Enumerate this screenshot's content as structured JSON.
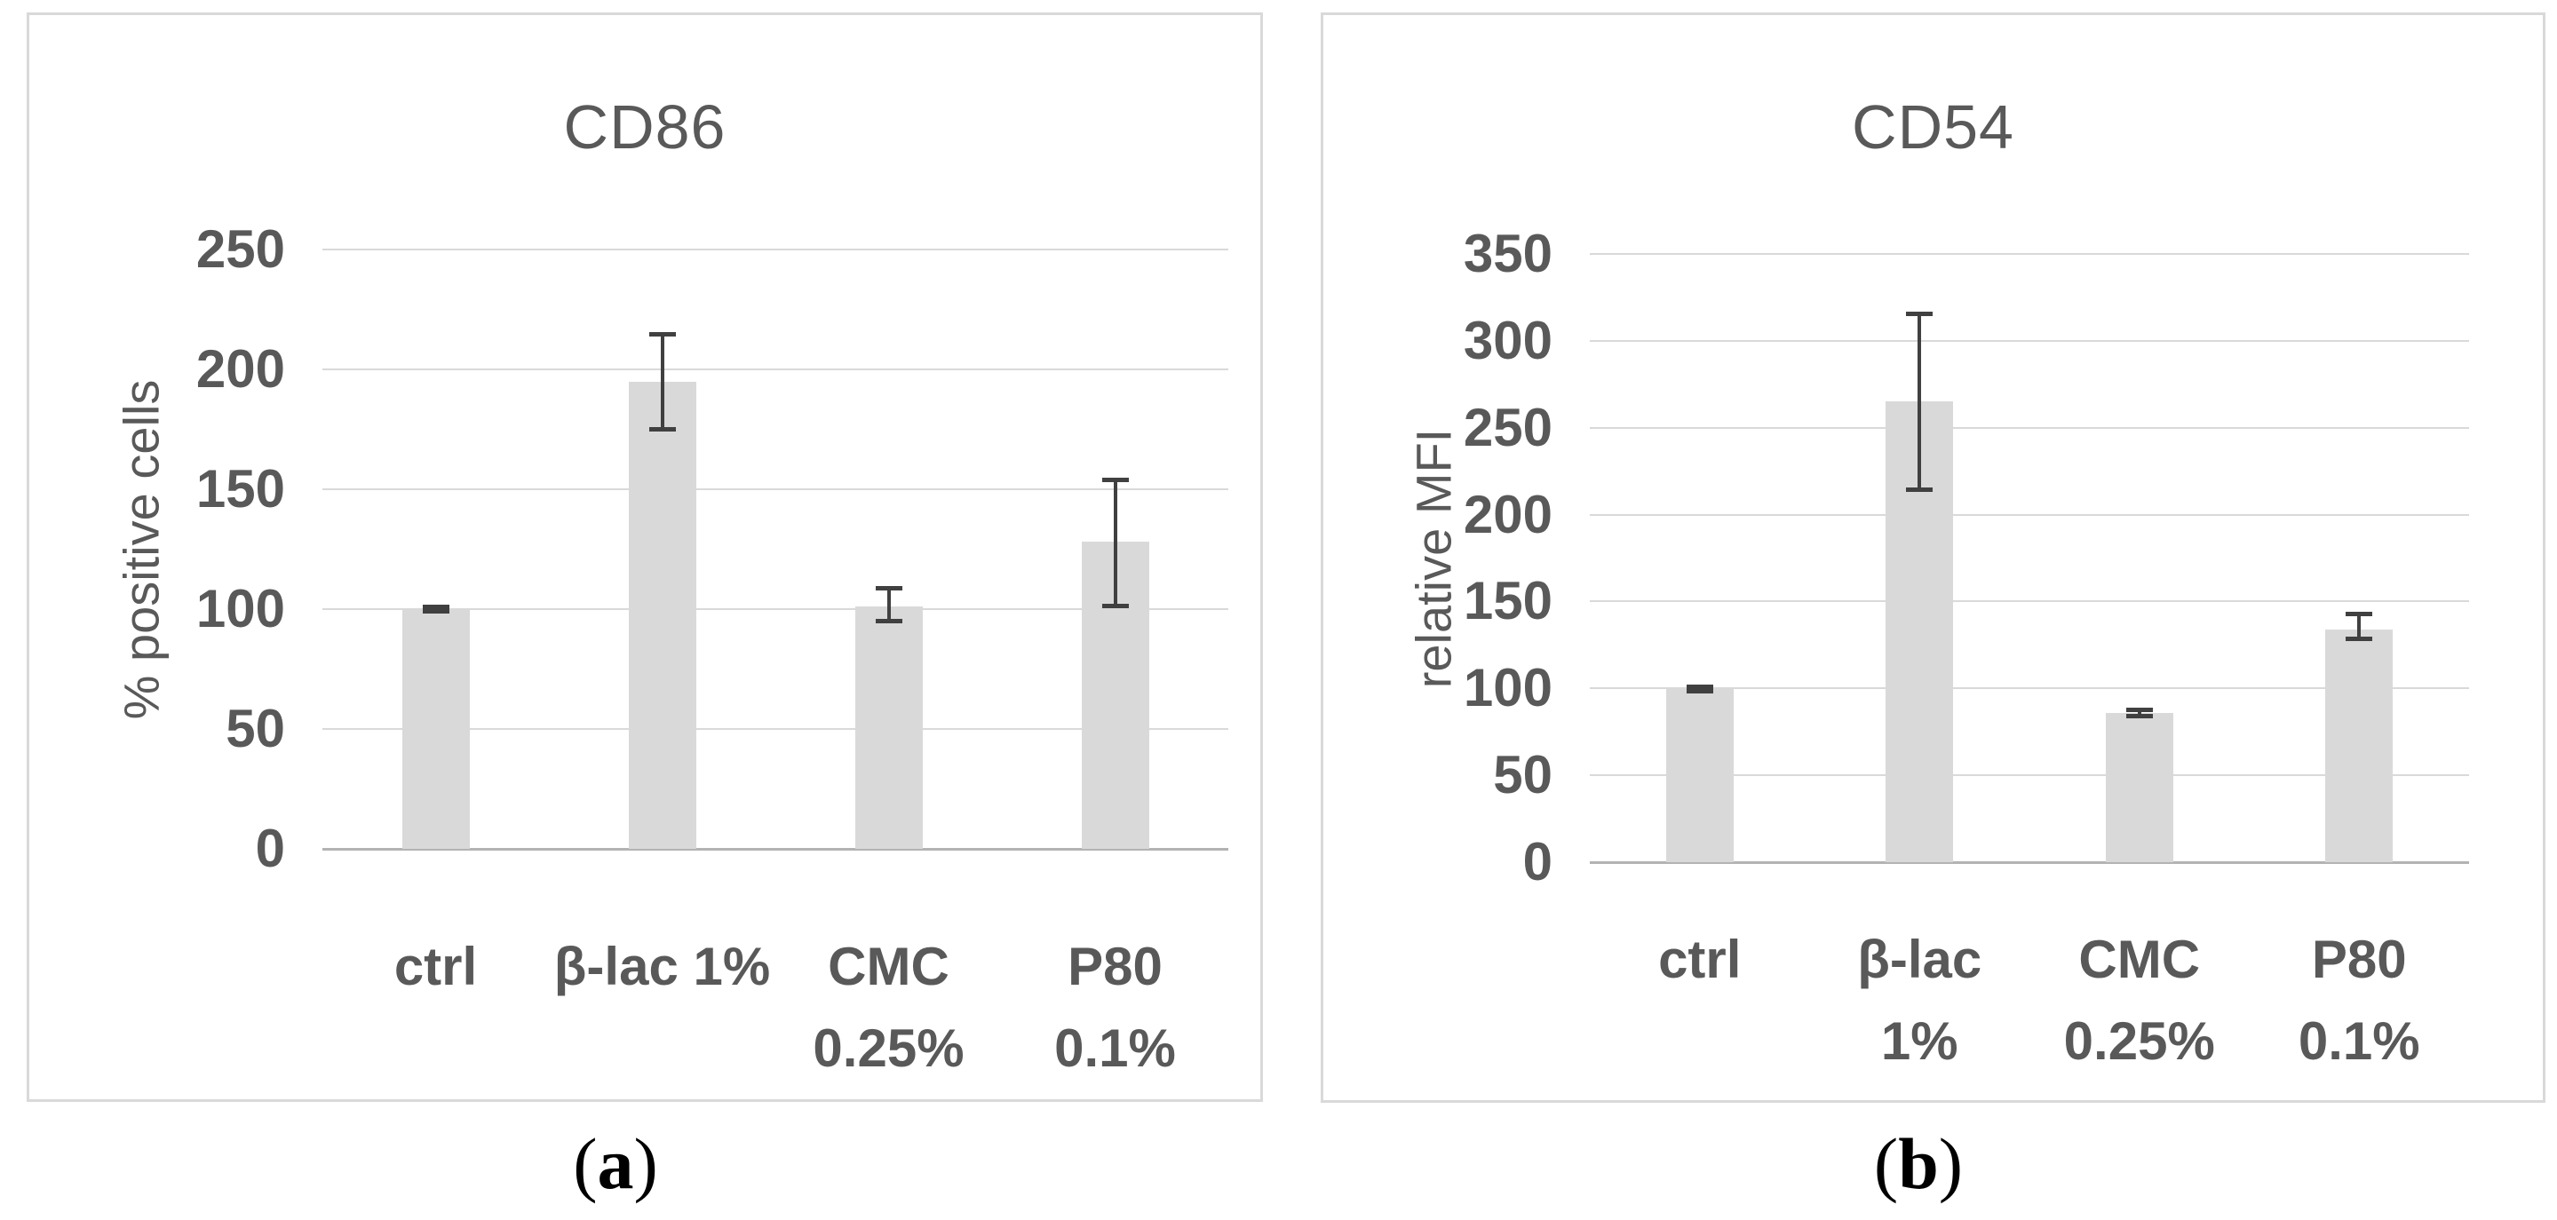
{
  "colors": {
    "bar_fill": "#d9d9d9",
    "error_bar": "#404040",
    "gridline": "#d9d9d9",
    "zero_axis": "#b3b3b3",
    "chart_text": "#595959",
    "panel_border": "#d9d9d9",
    "caption_text": "#000000",
    "background": "#ffffff"
  },
  "chart_data": [
    {
      "type": "bar",
      "panel": "a",
      "title": "CD86",
      "xlabel": "",
      "ylabel": "% positive cells",
      "ylim": [
        0,
        250
      ],
      "ytick_step": 50,
      "yticks": [
        250,
        200,
        150,
        100,
        50,
        0
      ],
      "grid": true,
      "legend": "none",
      "categories": [
        "ctrl",
        "β-lac 1%",
        "CMC 0.25%",
        "P80 0.1%"
      ],
      "category_label_lines": [
        [
          "ctrl"
        ],
        [
          "β-lac 1%"
        ],
        [
          "CMC",
          "0.25%"
        ],
        [
          "P80",
          "0.1%"
        ]
      ],
      "values": [
        100,
        195,
        101,
        128
      ],
      "error_low": [
        99,
        175,
        95,
        101
      ],
      "error_high": [
        101,
        215,
        109,
        154
      ],
      "caption": {
        "open": "(",
        "letter": "a",
        "close": ")"
      }
    },
    {
      "type": "bar",
      "panel": "b",
      "title": "CD54",
      "xlabel": "",
      "ylabel": "relative MFI",
      "ylim": [
        0,
        350
      ],
      "ytick_step": 50,
      "yticks": [
        350,
        300,
        250,
        200,
        150,
        100,
        50,
        0
      ],
      "grid": true,
      "legend": "none",
      "categories": [
        "ctrl",
        "β-lac 1%",
        "CMC 0.25%",
        "P80 0.1%"
      ],
      "category_label_lines": [
        [
          "ctrl"
        ],
        [
          "β-lac",
          "1%"
        ],
        [
          "CMC",
          "0.25%"
        ],
        [
          "P80",
          "0.1%"
        ]
      ],
      "values": [
        100,
        265,
        86,
        134
      ],
      "error_low": [
        98,
        214,
        84,
        128
      ],
      "error_high": [
        101,
        316,
        88,
        143
      ],
      "caption": {
        "open": "(",
        "letter": "b",
        "close": ")"
      }
    }
  ]
}
